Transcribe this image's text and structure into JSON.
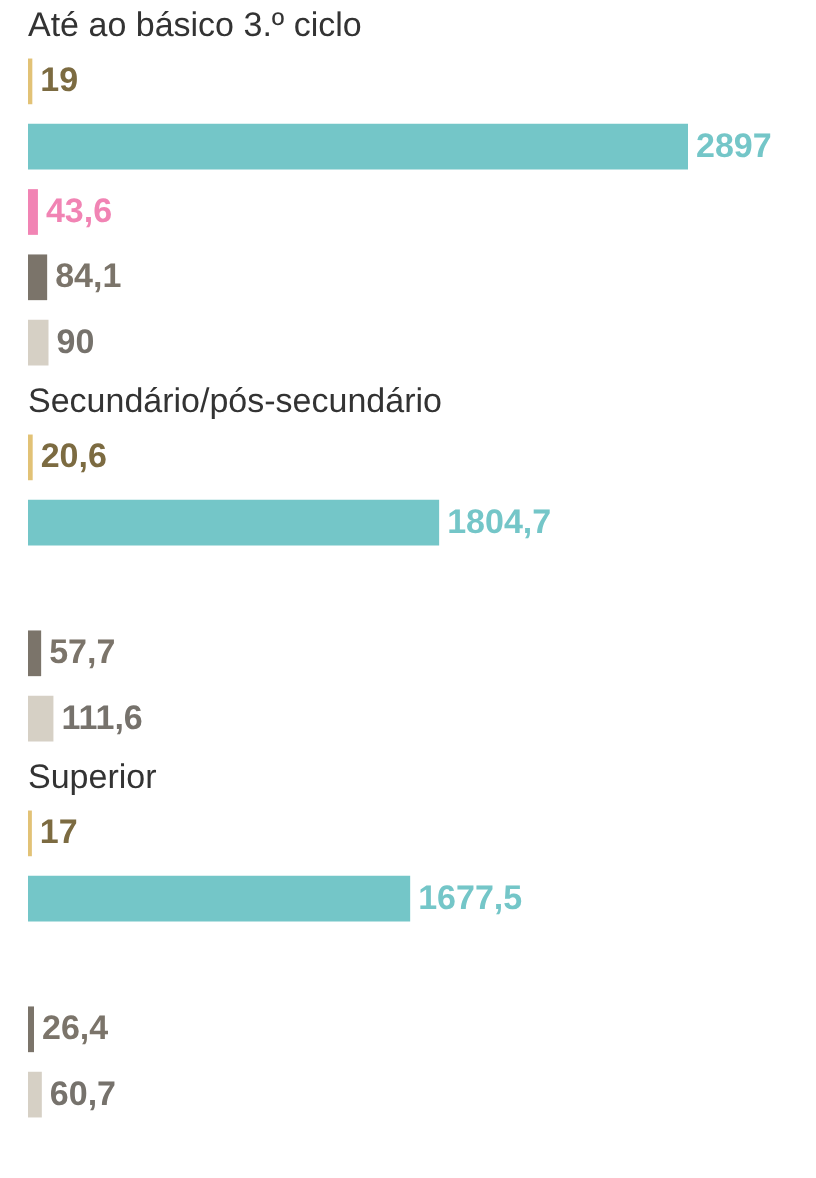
{
  "chart_data": {
    "type": "bar",
    "orientation": "horizontal",
    "categories": [
      "Até ao básico 3.º ciclo",
      "Secundário/pós-secundário",
      "Superior"
    ],
    "series": [
      {
        "color": "#e2c276",
        "values": [
          19,
          20.6,
          17
        ],
        "value_labels": [
          "19",
          "20,6",
          "17"
        ]
      },
      {
        "color": "#74c6c8",
        "values": [
          2897,
          1804.7,
          1677.5
        ],
        "value_labels": [
          "2897",
          "1804,7",
          "1677,5"
        ]
      },
      {
        "color": "#f184b4",
        "values": [
          43.6,
          null,
          null
        ],
        "value_labels": [
          "43,6",
          null,
          null
        ]
      },
      {
        "color": "#7b746a",
        "values": [
          84.1,
          57.7,
          26.4
        ],
        "value_labels": [
          "84,1",
          "57,7",
          "26,4"
        ]
      },
      {
        "color": "#d6d0c5",
        "values": [
          90,
          111.6,
          60.7
        ],
        "value_labels": [
          "90",
          "111,6",
          "60,7"
        ]
      }
    ],
    "legend": false
  }
}
